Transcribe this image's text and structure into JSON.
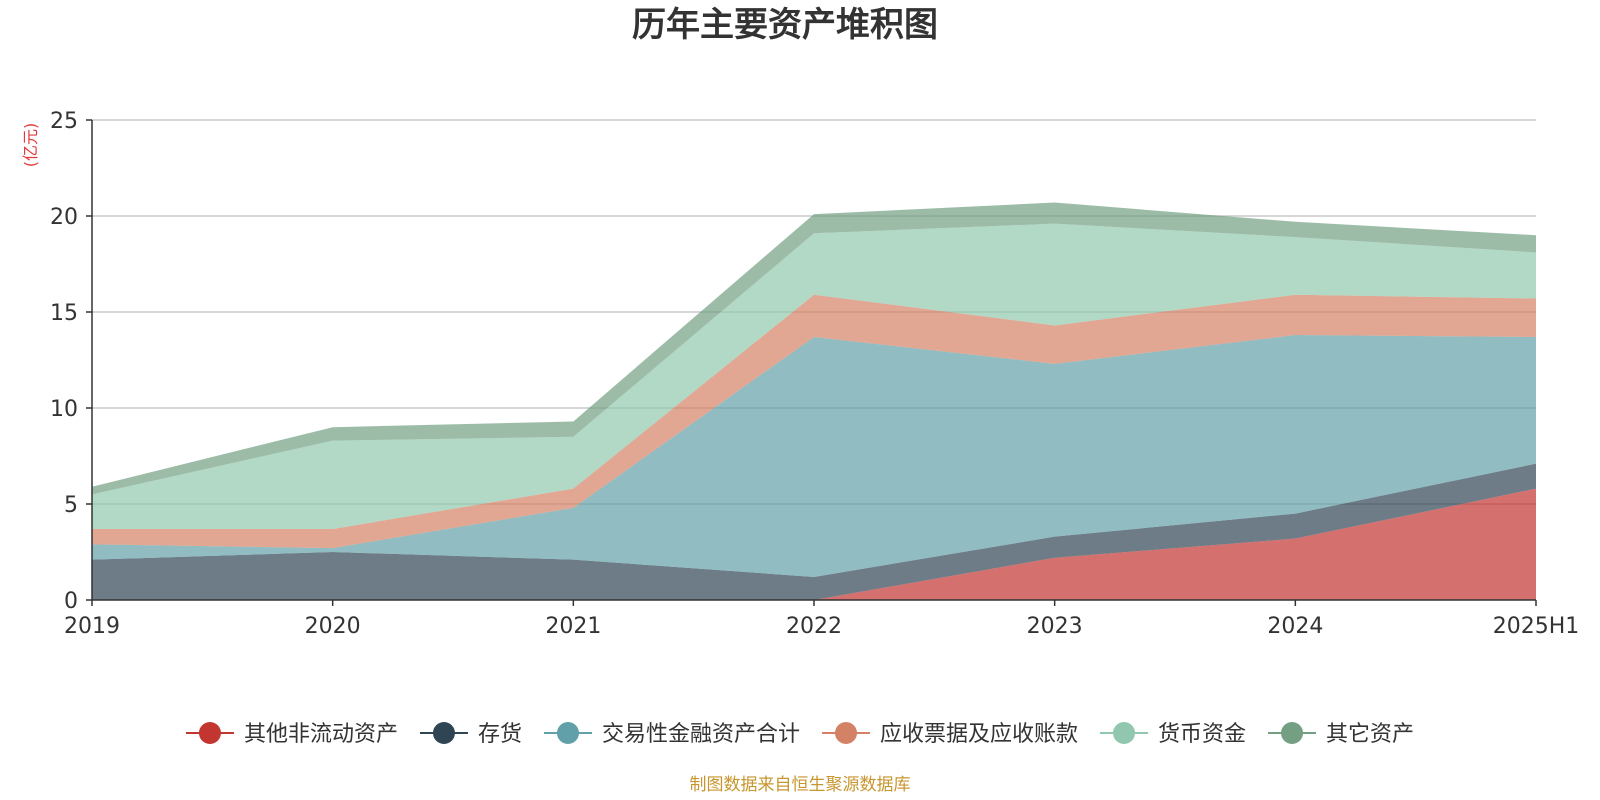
{
  "chart_data": {
    "type": "area",
    "stacked": true,
    "title": "历年主要资产堆积图",
    "unit_label": "(亿元)",
    "categories": [
      "2019",
      "2020",
      "2021",
      "2022",
      "2023",
      "2024",
      "2025H1"
    ],
    "ylim": [
      0,
      25
    ],
    "yticks": [
      0,
      5,
      10,
      15,
      20,
      25
    ],
    "grid": true,
    "legend_position": "bottom",
    "series": [
      {
        "name": "其他非流动资产",
        "color": "#c23531",
        "values": [
          0,
          0,
          0,
          0,
          2.2,
          3.2,
          5.8
        ]
      },
      {
        "name": "存货",
        "color": "#2f4554",
        "values": [
          2.1,
          2.5,
          2.1,
          1.2,
          1.1,
          1.3,
          1.3
        ]
      },
      {
        "name": "交易性金融资产合计",
        "color": "#61a0a8",
        "values": [
          0.8,
          0.2,
          2.7,
          12.5,
          9.0,
          9.3,
          6.6
        ]
      },
      {
        "name": "应收票据及应收账款",
        "color": "#d48265",
        "values": [
          0.8,
          1.0,
          1.0,
          2.2,
          2.0,
          2.1,
          2.0
        ]
      },
      {
        "name": "货币资金",
        "color": "#91c7ae",
        "values": [
          1.8,
          4.6,
          2.7,
          3.2,
          5.3,
          3.0,
          2.4
        ]
      },
      {
        "name": "其它资产",
        "color": "#749f83",
        "values": [
          0.4,
          0.7,
          0.8,
          1.0,
          1.1,
          0.8,
          0.9
        ]
      }
    ]
  },
  "source_note": "制图数据来自恒生聚源数据库"
}
